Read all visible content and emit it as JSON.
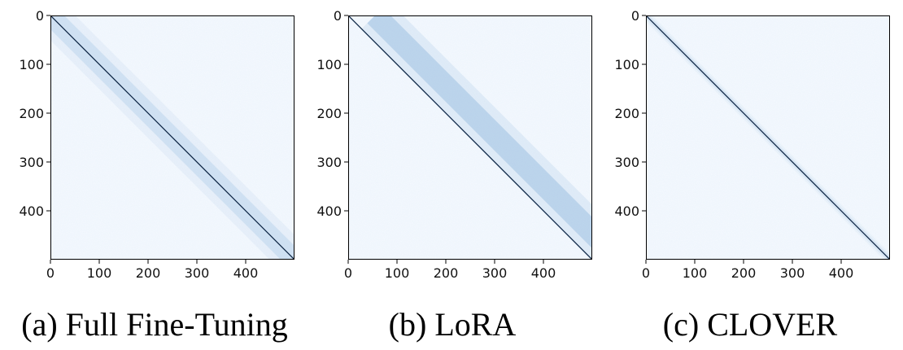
{
  "chart_data": [
    {
      "type": "heatmap",
      "caption": "(a) Full Fine-Tuning",
      "x_ticks": [
        0,
        100,
        200,
        300,
        400
      ],
      "y_ticks": [
        0,
        100,
        200,
        300,
        400
      ],
      "xlim": [
        0,
        500
      ],
      "ylim": [
        0,
        500
      ],
      "colormap": "Blues",
      "background_color": "#f5f9fe",
      "main_diagonal": {
        "offset": 0,
        "color": "#0a2a55"
      },
      "band": {
        "offset": 0,
        "width": 40,
        "intensity": 0.18,
        "color": "#6b9fd1"
      }
    },
    {
      "type": "heatmap",
      "caption": "(b) LoRA",
      "x_ticks": [
        0,
        100,
        200,
        300,
        400
      ],
      "y_ticks": [
        0,
        100,
        200,
        300,
        400
      ],
      "xlim": [
        0,
        500
      ],
      "ylim": [
        0,
        500
      ],
      "colormap": "Blues",
      "background_color": "#f5f9fe",
      "main_diagonal": {
        "offset": 0,
        "color": "#0a2a55"
      },
      "band": {
        "offset": 55,
        "width": 45,
        "intensity": 0.3,
        "color": "#6b9fd1"
      }
    },
    {
      "type": "heatmap",
      "caption": "(c) CLOVER",
      "x_ticks": [
        0,
        100,
        200,
        300,
        400
      ],
      "y_ticks": [
        0,
        100,
        200,
        300,
        400
      ],
      "xlim": [
        0,
        500
      ],
      "ylim": [
        0,
        500
      ],
      "colormap": "Blues",
      "background_color": "#f5f9fe",
      "main_diagonal": {
        "offset": 0,
        "color": "#08203f"
      },
      "band": {
        "offset": 0,
        "width": 10,
        "intensity": 0.12,
        "color": "#6b9fd1"
      }
    }
  ]
}
